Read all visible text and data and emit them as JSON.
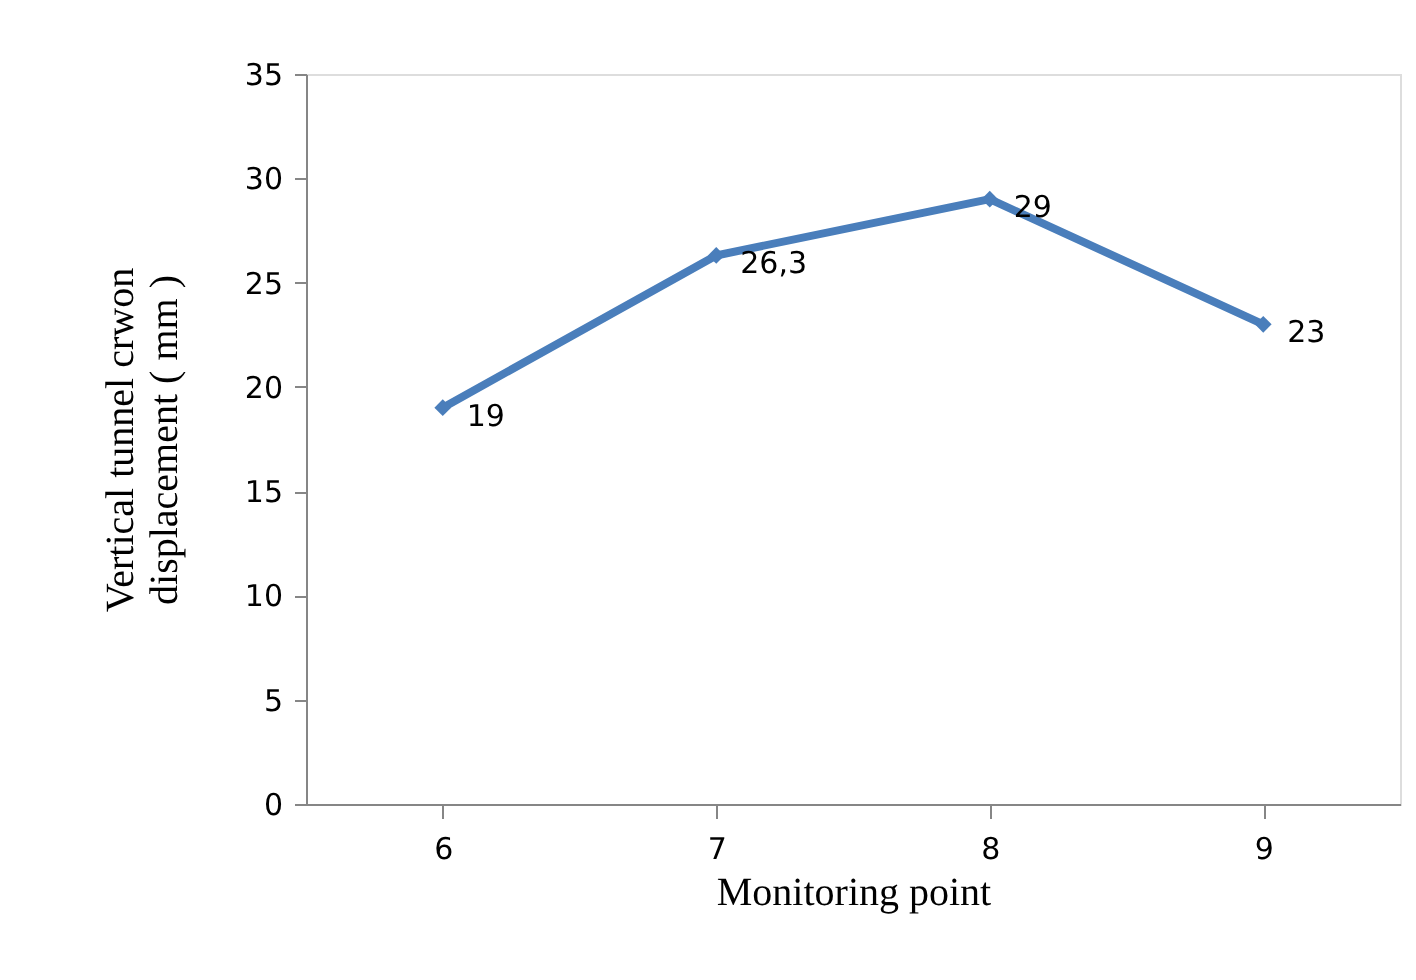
{
  "chart_data": {
    "type": "line",
    "xlabel": "Monitoring point",
    "ylabel": "Vertical tunnel crwon\ndisplacement ( mm )",
    "categories": [
      "6",
      "7",
      "8",
      "9"
    ],
    "series": [
      {
        "color": "#4a7ebb",
        "values": [
          19,
          26.3,
          29,
          23
        ],
        "value_labels": [
          "19",
          "26,3",
          "29",
          "23"
        ]
      }
    ],
    "ylim": [
      0,
      35
    ],
    "yticks": [
      0,
      5,
      10,
      15,
      20,
      25,
      30,
      35
    ],
    "grid": false,
    "marker": "diamond",
    "line_style": "solid"
  }
}
